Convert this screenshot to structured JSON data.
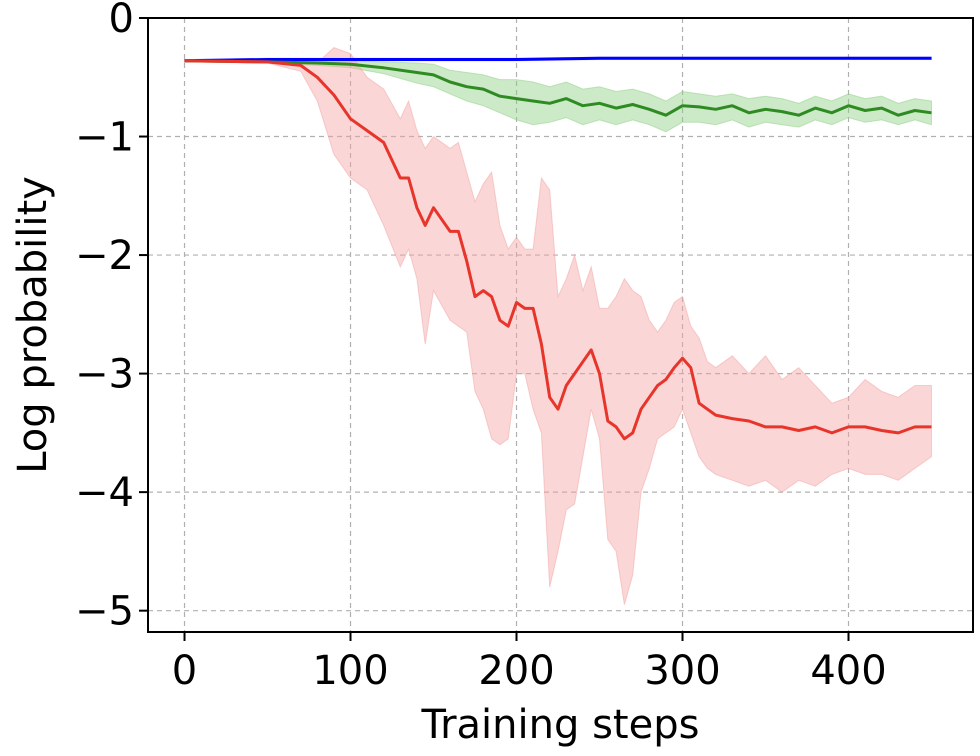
{
  "chart_data": {
    "type": "line",
    "xlabel": "Training steps",
    "ylabel": "Log probability",
    "xlim": [
      -22,
      475
    ],
    "ylim": [
      -5.18,
      0.0
    ],
    "xticks": [
      0,
      100,
      200,
      300,
      400
    ],
    "xtick_labels": [
      "0",
      "100",
      "200",
      "300",
      "400"
    ],
    "yticks": [
      0,
      -1,
      -2,
      -3,
      -4,
      -5
    ],
    "ytick_labels": [
      "0",
      "−1",
      "−2",
      "−3",
      "−4",
      "−5"
    ],
    "grid": true,
    "legend": "none",
    "series": [
      {
        "color": "#0000ff",
        "band_color": "#9aa0ff",
        "x": [
          0,
          50,
          100,
          150,
          200,
          250,
          300,
          350,
          400,
          450
        ],
        "y": [
          -0.36,
          -0.35,
          -0.35,
          -0.35,
          -0.35,
          -0.34,
          -0.34,
          -0.34,
          -0.34,
          -0.34
        ],
        "lower": [
          -0.37,
          -0.36,
          -0.36,
          -0.36,
          -0.36,
          -0.35,
          -0.35,
          -0.35,
          -0.35,
          -0.35
        ],
        "upper": [
          -0.35,
          -0.34,
          -0.34,
          -0.34,
          -0.34,
          -0.33,
          -0.33,
          -0.33,
          -0.33,
          -0.33
        ]
      },
      {
        "color": "#2e8b22",
        "band_color": "#8fcf86",
        "x": [
          0,
          50,
          80,
          100,
          120,
          140,
          150,
          160,
          170,
          180,
          190,
          200,
          210,
          220,
          230,
          240,
          250,
          260,
          270,
          280,
          290,
          300,
          310,
          320,
          330,
          340,
          350,
          360,
          370,
          380,
          390,
          400,
          410,
          420,
          430,
          440,
          450
        ],
        "y": [
          -0.36,
          -0.37,
          -0.38,
          -0.39,
          -0.42,
          -0.46,
          -0.48,
          -0.54,
          -0.58,
          -0.6,
          -0.66,
          -0.68,
          -0.7,
          -0.72,
          -0.68,
          -0.74,
          -0.72,
          -0.76,
          -0.73,
          -0.77,
          -0.82,
          -0.74,
          -0.75,
          -0.77,
          -0.74,
          -0.8,
          -0.77,
          -0.79,
          -0.82,
          -0.76,
          -0.8,
          -0.74,
          -0.78,
          -0.76,
          -0.82,
          -0.78,
          -0.8
        ],
        "lower": [
          -0.37,
          -0.38,
          -0.4,
          -0.42,
          -0.47,
          -0.55,
          -0.58,
          -0.64,
          -0.7,
          -0.74,
          -0.8,
          -0.86,
          -0.9,
          -0.88,
          -0.84,
          -0.9,
          -0.86,
          -0.9,
          -0.86,
          -0.9,
          -0.96,
          -0.88,
          -0.88,
          -0.9,
          -0.86,
          -0.92,
          -0.88,
          -0.9,
          -0.92,
          -0.86,
          -0.9,
          -0.84,
          -0.88,
          -0.86,
          -0.9,
          -0.86,
          -0.9
        ],
        "upper": [
          -0.35,
          -0.36,
          -0.36,
          -0.36,
          -0.37,
          -0.38,
          -0.39,
          -0.44,
          -0.46,
          -0.48,
          -0.52,
          -0.52,
          -0.54,
          -0.58,
          -0.54,
          -0.6,
          -0.58,
          -0.62,
          -0.6,
          -0.64,
          -0.7,
          -0.62,
          -0.64,
          -0.66,
          -0.64,
          -0.68,
          -0.66,
          -0.68,
          -0.72,
          -0.66,
          -0.7,
          -0.64,
          -0.68,
          -0.66,
          -0.72,
          -0.68,
          -0.7
        ]
      },
      {
        "color": "#e8352b",
        "band_color": "#f4a3a3",
        "x": [
          0,
          50,
          70,
          80,
          90,
          100,
          110,
          120,
          130,
          135,
          140,
          145,
          150,
          160,
          165,
          170,
          175,
          180,
          185,
          190,
          195,
          200,
          205,
          210,
          215,
          220,
          225,
          230,
          235,
          240,
          245,
          250,
          255,
          260,
          265,
          270,
          275,
          280,
          285,
          290,
          295,
          300,
          305,
          310,
          315,
          320,
          330,
          340,
          350,
          360,
          370,
          380,
          390,
          400,
          410,
          420,
          430,
          440,
          450
        ],
        "y": [
          -0.36,
          -0.37,
          -0.4,
          -0.5,
          -0.65,
          -0.85,
          -0.95,
          -1.05,
          -1.35,
          -1.35,
          -1.6,
          -1.75,
          -1.6,
          -1.8,
          -1.8,
          -2.05,
          -2.35,
          -2.3,
          -2.35,
          -2.55,
          -2.6,
          -2.4,
          -2.45,
          -2.45,
          -2.75,
          -3.2,
          -3.3,
          -3.1,
          -3.0,
          -2.9,
          -2.8,
          -3.0,
          -3.4,
          -3.45,
          -3.55,
          -3.5,
          -3.3,
          -3.2,
          -3.1,
          -3.05,
          -2.95,
          -2.87,
          -2.95,
          -3.25,
          -3.3,
          -3.35,
          -3.38,
          -3.4,
          -3.45,
          -3.45,
          -3.48,
          -3.45,
          -3.5,
          -3.45,
          -3.45,
          -3.48,
          -3.5,
          -3.45,
          -3.45
        ],
        "lower": [
          -0.37,
          -0.38,
          -0.45,
          -0.7,
          -1.15,
          -1.35,
          -1.45,
          -1.75,
          -2.1,
          -1.95,
          -2.2,
          -2.75,
          -2.3,
          -2.55,
          -2.6,
          -2.65,
          -3.15,
          -3.3,
          -3.55,
          -3.6,
          -3.55,
          -3.0,
          -3.0,
          -3.3,
          -3.5,
          -4.8,
          -4.5,
          -4.15,
          -4.1,
          -3.7,
          -3.3,
          -3.55,
          -4.4,
          -4.5,
          -4.95,
          -4.7,
          -4.0,
          -3.8,
          -3.55,
          -3.5,
          -3.45,
          -3.3,
          -3.5,
          -3.7,
          -3.8,
          -3.85,
          -3.9,
          -3.95,
          -3.9,
          -4.0,
          -3.9,
          -3.95,
          -3.85,
          -3.8,
          -3.85,
          -3.85,
          -3.9,
          -3.8,
          -3.7
        ],
        "upper": [
          -0.35,
          -0.36,
          -0.36,
          -0.38,
          -0.25,
          -0.3,
          -0.5,
          -0.6,
          -0.85,
          -0.7,
          -0.95,
          -1.1,
          -1.0,
          -1.1,
          -1.05,
          -1.3,
          -1.55,
          -1.4,
          -1.3,
          -1.75,
          -1.95,
          -1.85,
          -1.95,
          -1.95,
          -1.35,
          -1.45,
          -2.35,
          -2.2,
          -2.0,
          -2.3,
          -2.1,
          -2.45,
          -2.45,
          -2.35,
          -2.2,
          -2.3,
          -2.35,
          -2.55,
          -2.65,
          -2.55,
          -2.4,
          -2.35,
          -2.6,
          -2.7,
          -2.9,
          -2.95,
          -2.85,
          -3.0,
          -2.85,
          -3.05,
          -2.95,
          -3.1,
          -3.25,
          -3.2,
          -3.05,
          -3.15,
          -3.2,
          -3.1,
          -3.1
        ]
      }
    ]
  }
}
